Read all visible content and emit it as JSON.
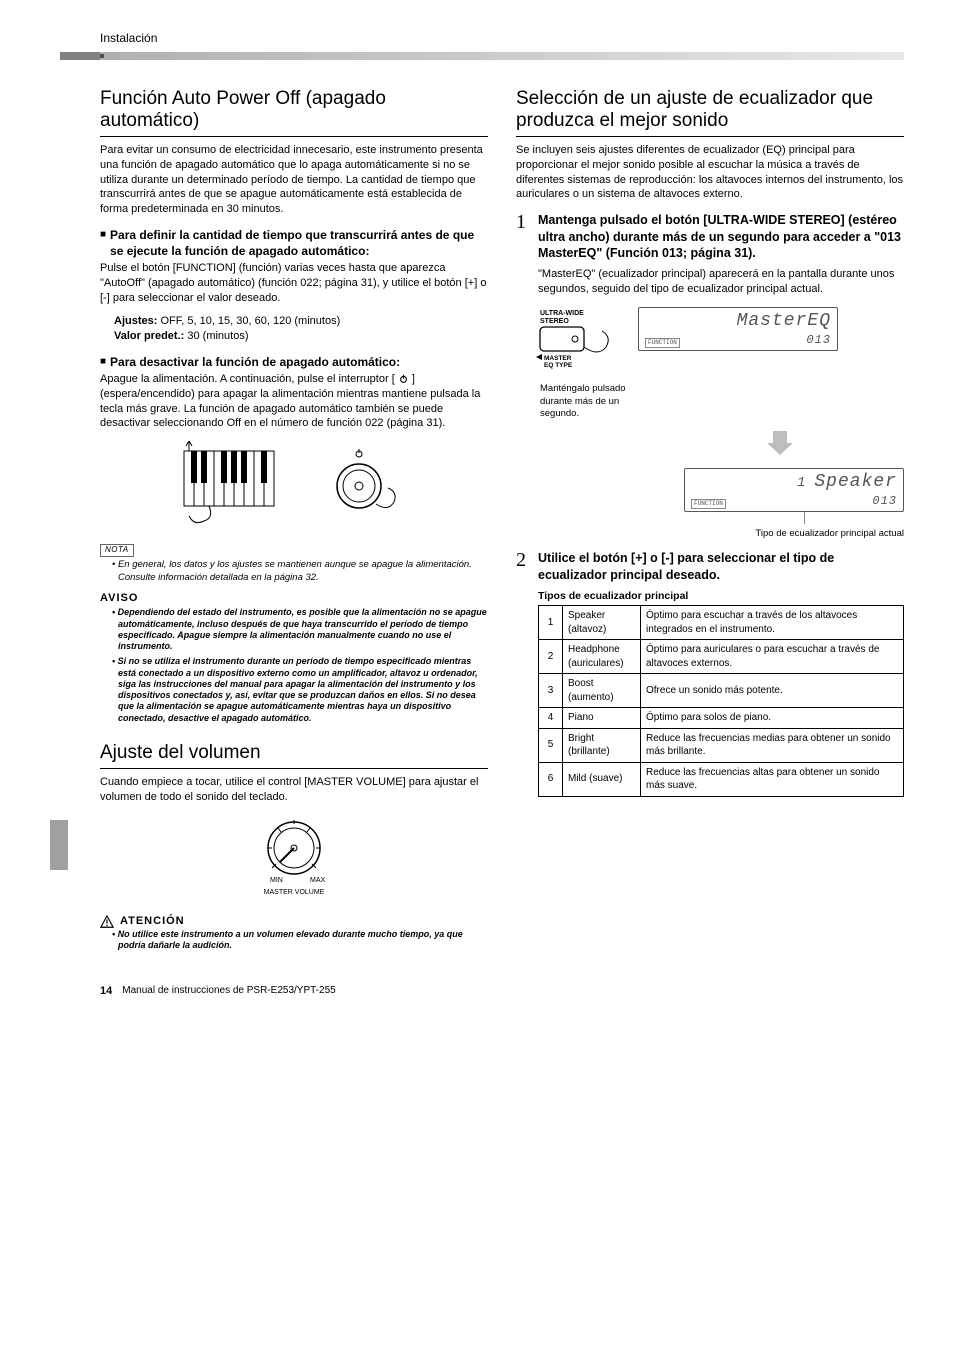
{
  "header": {
    "breadcrumb": "Instalación"
  },
  "left": {
    "sec1": {
      "title": "Función Auto Power Off (apagado automático)",
      "intro": "Para evitar un consumo de electricidad innecesario, este instrumento presenta una función de apagado automático que lo apaga automáticamente si no se utiliza durante un determinado período de tiempo. La cantidad de tiempo que transcurrirá antes de que se apague automáticamente está establecida de forma predeterminada en 30 minutos.",
      "sub1_title": "Para definir la cantidad de tiempo que transcurrirá antes de que se ejecute la función de apagado automático:",
      "sub1_body": "Pulse el botón [FUNCTION] (función) varias veces hasta que aparezca \"AutoOff\" (apagado automático) (función 022; página 31), y utilice el botón [+] o [-] para seleccionar el valor deseado.",
      "ajustes_label": "Ajustes:",
      "ajustes_val": "OFF, 5, 10, 15, 30, 60, 120 (minutos)",
      "valor_label": "Valor predet.:",
      "valor_val": "30 (minutos)",
      "sub2_title": "Para desactivar la función de apagado automático:",
      "sub2_body_a": "Apague la alimentación. A continuación, pulse el interruptor [ ",
      "sub2_body_b": " ] (espera/encendido) para apagar la alimentación mientras mantiene pulsada la tecla más grave. La función de apagado automático también se puede desactivar seleccionando Off en el número de función 022 (página 31).",
      "nota_label": "NOTA",
      "nota_text": "En general, los datos y los ajustes se mantienen aunque se apague la alimentación. Consulte información detallada en la página 32.",
      "aviso_label": "AVISO",
      "aviso1": "Dependiendo del estado del instrumento, es posible que la alimentación no se apague automáticamente, incluso después de que haya transcurrido el período de tiempo especificado. Apague siempre la alimentación manualmente cuando no use el instrumento.",
      "aviso2": "Si no se utiliza el instrumento durante un período de tiempo especificado mientras está conectado a un dispositivo externo como un amplificador, altavoz u ordenador, siga las instrucciones del manual para apagar la alimentación del instrumento y los dispositivos conectados y, así, evitar que se produzcan daños en ellos. Si no desea que la alimentación se apague automáticamente mientras haya un dispositivo conectado, desactive el apagado automático."
    },
    "sec2": {
      "title": "Ajuste del volumen",
      "intro": "Cuando empiece a tocar, utilice el control [MASTER VOLUME] para ajustar el volumen de todo el sonido del teclado.",
      "knob_min": "MIN",
      "knob_max": "MAX",
      "knob_label": "MASTER VOLUME",
      "atencion_label": "ATENCIÓN",
      "atencion_text": "No utilice este instrumento a un volumen elevado durante mucho tiempo, ya que podría dañarle la audición."
    }
  },
  "right": {
    "sec1": {
      "title": "Selección de un ajuste de ecualizador que produzca el mejor sonido",
      "intro": "Se incluyen seis ajustes diferentes de ecualizador (EQ) principal para proporcionar el mejor sonido posible al escuchar la música a través de diferentes sistemas de reproducción: los altavoces internos del instrumento, los auriculares o un sistema de altavoces externo.",
      "step1_num": "1",
      "step1_title": "Mantenga pulsado el botón [ULTRA-WIDE STEREO] (estéreo ultra ancho) durante más de un segundo para acceder a \"013 MasterEQ\" (Función 013; página 31).",
      "step1_body": "\"MasterEQ\" (ecualizador principal) aparecerá en la pantalla durante unos segundos, seguido del tipo de ecualizador principal actual.",
      "btn_l1": "ULTRA-WIDE",
      "btn_l2": "STEREO",
      "btn_l3": "MASTER",
      "btn_l4": "EQ TYPE",
      "lcd1_main": "MasterEQ",
      "lcd1_func": "FUNCTION",
      "lcd1_num": "013",
      "hold_note": "Manténgalo pulsado durante más de un segundo.",
      "lcd2_pre": "1",
      "lcd2_main": "Speaker",
      "lcd2_func": "FUNCTION",
      "lcd2_num": "013",
      "eq_caption": "Tipo de ecualizador principal actual",
      "step2_num": "2",
      "step2_title": "Utilice el botón [+] o [-] para seleccionar el tipo de ecualizador principal deseado.",
      "table_caption": "Tipos de ecualizador principal",
      "table": {
        "columns_widths": [
          24,
          78,
          null
        ],
        "rows": [
          {
            "n": "1",
            "name": "Speaker (altavoz)",
            "desc": "Óptimo para escuchar a través de los altavoces integrados en el instrumento."
          },
          {
            "n": "2",
            "name": "Headphone (auriculares)",
            "desc": "Óptimo para auriculares o para escuchar a través de altavoces externos."
          },
          {
            "n": "3",
            "name": "Boost (aumento)",
            "desc": "Ofrece un sonido más potente."
          },
          {
            "n": "4",
            "name": "Piano",
            "desc": "Óptimo para solos de piano."
          },
          {
            "n": "5",
            "name": "Bright (brillante)",
            "desc": "Reduce las frecuencias medias para obtener un sonido más brillante."
          },
          {
            "n": "6",
            "name": "Mild (suave)",
            "desc": "Reduce las frecuencias altas para obtener un sonido más suave."
          }
        ]
      }
    }
  },
  "footer": {
    "page": "14",
    "manual": "Manual de instrucciones de PSR-E253/YPT-255"
  },
  "colors": {
    "text": "#000000",
    "lcd_text": "#555555",
    "rule": "#000000",
    "header_grad_from": "#b0b0b0",
    "header_grad_to": "#e8e8e8"
  }
}
